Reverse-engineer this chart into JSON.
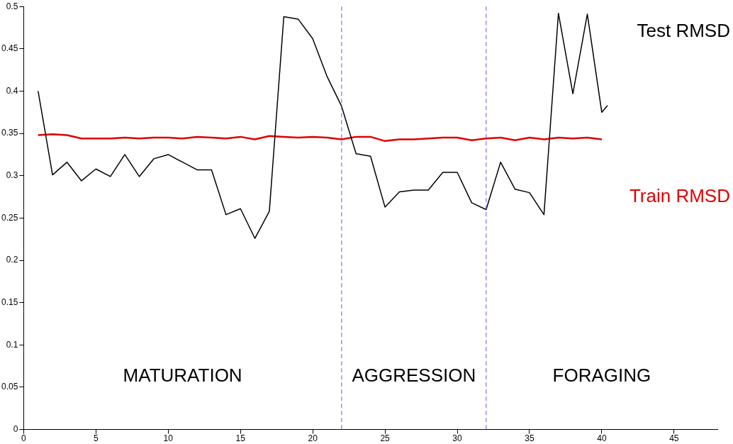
{
  "chart_data": {
    "type": "line",
    "x": [
      1,
      2,
      3,
      4,
      5,
      6,
      7,
      8,
      9,
      10,
      11,
      12,
      13,
      14,
      15,
      16,
      17,
      18,
      19,
      20,
      21,
      22,
      23,
      24,
      25,
      26,
      27,
      28,
      29,
      30,
      31,
      32,
      33,
      34,
      35,
      36,
      37,
      38,
      39,
      40,
      40.4
    ],
    "series": [
      {
        "name": "Test RMSD",
        "color": "#000000",
        "values": [
          0.4,
          0.301,
          0.316,
          0.294,
          0.308,
          0.299,
          0.325,
          0.299,
          0.32,
          0.325,
          0.316,
          0.307,
          0.307,
          0.254,
          0.261,
          0.226,
          0.258,
          0.488,
          0.485,
          0.462,
          0.417,
          0.382,
          0.326,
          0.323,
          0.263,
          0.281,
          0.283,
          0.283,
          0.304,
          0.304,
          0.268,
          0.26,
          0.316,
          0.284,
          0.28,
          0.254,
          0.492,
          0.397,
          0.491,
          0.375,
          0.383
        ]
      },
      {
        "name": "Train RMSD",
        "color": "#e00000",
        "values": [
          0.348,
          0.349,
          0.348,
          0.344,
          0.344,
          0.344,
          0.345,
          0.344,
          0.345,
          0.345,
          0.344,
          0.346,
          0.345,
          0.344,
          0.346,
          0.343,
          0.347,
          0.346,
          0.345,
          0.346,
          0.345,
          0.343,
          0.346,
          0.346,
          0.341,
          0.343,
          0.343,
          0.344,
          0.345,
          0.345,
          0.342,
          0.344,
          0.345,
          0.342,
          0.345,
          0.343,
          0.345,
          0.344,
          0.345,
          0.343,
          null
        ]
      }
    ],
    "xlim": [
      0,
      48
    ],
    "xticks": [
      0,
      5,
      10,
      15,
      20,
      25,
      30,
      35,
      40,
      45
    ],
    "ylim": [
      0,
      0.5
    ],
    "yticks": [
      0,
      0.05,
      0.1,
      0.15,
      0.2,
      0.25,
      0.3,
      0.35,
      0.4,
      0.45,
      0.5
    ],
    "ref_lines": [
      {
        "axis": "x",
        "value": 22,
        "color": "#5b5bff",
        "line_style": "dashed"
      },
      {
        "axis": "x",
        "value": 32,
        "color": "#5b5bff",
        "line_style": "dashed"
      }
    ],
    "annotations": [
      "MATURATION",
      "AGGRESSION",
      "FORAGING"
    ],
    "grid": false,
    "legend": false,
    "marker": "none",
    "line_style": "solid"
  }
}
